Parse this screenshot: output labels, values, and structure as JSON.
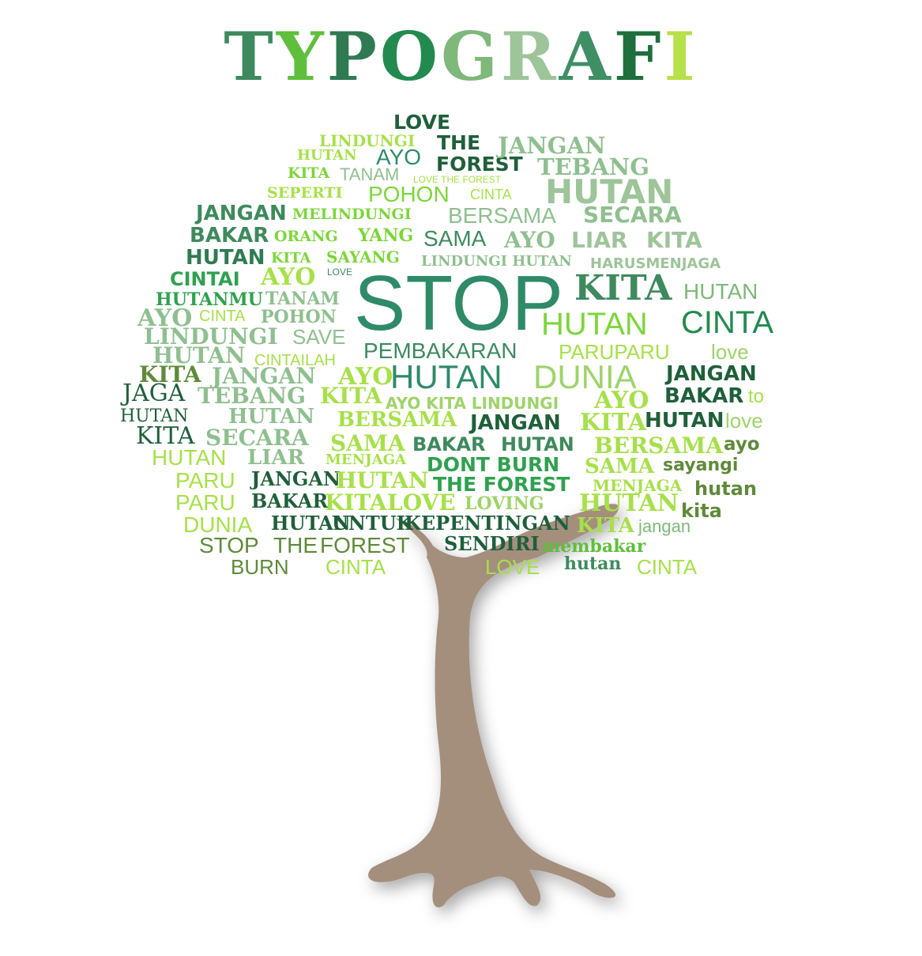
{
  "title_letters": [
    "T",
    "Y",
    "P",
    "O",
    "G",
    "R",
    "A",
    "F",
    "I"
  ],
  "title_colors": [
    "#3e8a5e",
    "#5fbf3c",
    "#2f7a52",
    "#238a4f",
    "#7fb87a",
    "#9ec49a",
    "#3f8f66",
    "#1e6f3c",
    "#b7e04a"
  ],
  "colors": {
    "dark": "#1f5f3a",
    "mid": "#3e8a5e",
    "sea": "#2f8a68",
    "sage": "#8fbf8f",
    "light": "#9ed36a",
    "lime": "#a7e04a",
    "bright": "#7cd63a",
    "olive": "#5f8a3a",
    "trunk": "#a48f7d"
  },
  "words": [
    "LOVE",
    "THE",
    "FOREST",
    "LINDUNGI",
    "HUTAN",
    "AYO",
    "JANGAN",
    "TEBANG",
    "KITA",
    "TANAM",
    "LOVE THE FOREST",
    "HUTAN",
    "SEPERTI",
    "POHON",
    "CINTA",
    "JANGAN",
    "MELINDUNGI",
    "BERSAMA",
    "SECARA",
    "BAKAR",
    "ORANG",
    "YANG",
    "SAMA",
    "AYO",
    "LIAR",
    "KITA",
    "HUTAN",
    "KITA",
    "SAYANG",
    "LINDUNGI HUTAN",
    "HARUSMENJAGA",
    "CINTAI",
    "AYO",
    "LOVE",
    "STOP",
    "KITA",
    "HUTAN",
    "HUTANMU",
    "TANAM",
    "AYO",
    "CINTA",
    "POHON",
    "HUTAN",
    "CINTA",
    "LINDUNGI",
    "SAVE",
    "PEMBAKARAN",
    "PARUPARU",
    "love",
    "HUTAN",
    "CINTAILAH",
    "KITA",
    "JANGAN",
    "AYO",
    "HUTAN",
    "DUNIA",
    "JANGAN",
    "JAGA",
    "TEBANG",
    "KITA",
    "AYO KITA LINDUNGI",
    "AYO",
    "BAKAR",
    "to",
    "HUTAN",
    "HUTAN",
    "BERSAMA",
    "JANGAN",
    "KITA",
    "HUTAN",
    "love",
    "KITA",
    "SECARA",
    "SAMA",
    "BAKAR",
    "HUTAN",
    "BERSAMA",
    "ayo",
    "HUTAN",
    "LIAR",
    "MENJAGA",
    "DONT BURN",
    "SAMA",
    "sayangi",
    "PARU",
    "JANGAN",
    "HUTAN",
    "THE FOREST",
    "MENJAGA",
    "hutan",
    "PARU",
    "BAKAR",
    "KITA",
    "LOVE",
    "LOVING",
    "HUTAN",
    "kita",
    "DUNIA",
    "HUTAN",
    "UNTUK",
    "KEPENTINGAN",
    "KITA",
    "jangan",
    "STOP",
    "THE",
    "FOREST",
    "SENDIRI",
    "membakar",
    "BURN",
    "CINTA",
    "LOVE",
    "hutan",
    "CINTA"
  ]
}
